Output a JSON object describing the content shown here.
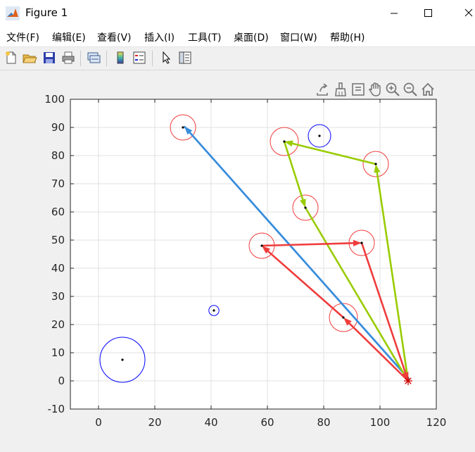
{
  "window": {
    "title": "Figure 1"
  },
  "menu": [
    {
      "label": "文件(F)"
    },
    {
      "label": "编辑(E)"
    },
    {
      "label": "查看(V)"
    },
    {
      "label": "插入(I)"
    },
    {
      "label": "工具(T)"
    },
    {
      "label": "桌面(D)"
    },
    {
      "label": "窗口(W)"
    },
    {
      "label": "帮助(H)"
    }
  ],
  "toolbar": {
    "icons": [
      "new-figure-icon",
      "open-file-icon",
      "save-icon",
      "print-icon",
      "link-plot-icon",
      "colorbar-icon",
      "legend-icon",
      "pointer-icon",
      "property-inspector-icon"
    ]
  },
  "axes_toolbar": {
    "icons": [
      "export-icon",
      "brush-icon",
      "data-tips-icon",
      "pan-icon",
      "zoom-in-icon",
      "zoom-out-icon",
      "home-icon"
    ]
  },
  "colors": {
    "red": "#f03c3c",
    "green": "#99cc00",
    "blue_route": "#3a8edc",
    "circle_blue": "#0000ff",
    "depot_marker": "#cc0000"
  },
  "chart_data": {
    "type": "scatter",
    "xlim": [
      -10,
      120
    ],
    "ylim": [
      -10,
      100
    ],
    "xticks": [
      0,
      20,
      40,
      60,
      80,
      100,
      120
    ],
    "yticks": [
      -10,
      0,
      10,
      20,
      30,
      40,
      50,
      60,
      70,
      80,
      90,
      100
    ],
    "grid": true,
    "depot": {
      "x": 110,
      "y": 0,
      "marker": "*"
    },
    "points": [
      {
        "x": 30,
        "y": 90,
        "r": 4.5,
        "color": "red"
      },
      {
        "x": 66,
        "y": 85,
        "r": 5,
        "color": "red"
      },
      {
        "x": 78.5,
        "y": 87,
        "r": 4,
        "color": "circle_blue"
      },
      {
        "x": 98.5,
        "y": 77,
        "r": 4.5,
        "color": "red"
      },
      {
        "x": 73.5,
        "y": 61.5,
        "r": 4.5,
        "color": "red"
      },
      {
        "x": 58,
        "y": 48,
        "r": 4.5,
        "color": "red"
      },
      {
        "x": 93.5,
        "y": 49,
        "r": 4.5,
        "color": "red"
      },
      {
        "x": 41,
        "y": 25,
        "r": 1.8,
        "color": "circle_blue"
      },
      {
        "x": 87,
        "y": 22.5,
        "r": 5,
        "color": "red"
      },
      {
        "x": 8.5,
        "y": 7.5,
        "r": 8,
        "color": "circle_blue"
      }
    ],
    "routes": [
      {
        "color": "blue_route",
        "legs": [
          {
            "from": [
              110,
              0
            ],
            "to": [
              30,
              90
            ]
          },
          {
            "from": [
              30,
              90
            ],
            "to": [
              110,
              0
            ]
          }
        ]
      },
      {
        "color": "green",
        "legs": [
          {
            "from": [
              110,
              0
            ],
            "to": [
              98.5,
              77
            ]
          },
          {
            "from": [
              98.5,
              77
            ],
            "to": [
              66,
              85
            ]
          },
          {
            "from": [
              66,
              85
            ],
            "to": [
              73.5,
              61.5
            ]
          },
          {
            "from": [
              73.5,
              61.5
            ],
            "to": [
              110,
              0
            ]
          }
        ]
      },
      {
        "color": "red",
        "legs": [
          {
            "from": [
              110,
              0
            ],
            "to": [
              87,
              22.5
            ]
          },
          {
            "from": [
              87,
              22.5
            ],
            "to": [
              58,
              48
            ]
          },
          {
            "from": [
              58,
              48
            ],
            "to": [
              93.5,
              49
            ]
          },
          {
            "from": [
              93.5,
              49
            ],
            "to": [
              110,
              0
            ]
          }
        ]
      }
    ]
  }
}
